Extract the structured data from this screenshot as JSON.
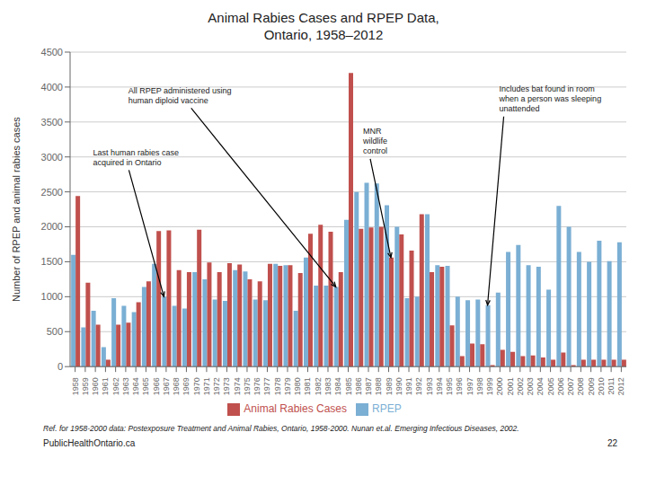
{
  "chart_data": {
    "type": "bar",
    "title": "Animal Rabies Cases and RPEP Data,\nOntario, 1958–2012",
    "y_label": "Number of RPEP and animal rabies cases",
    "categories": [
      "1958",
      "1959",
      "1960",
      "1961",
      "1962",
      "1963",
      "1964",
      "1965",
      "1966",
      "1967",
      "1968",
      "1969",
      "1970",
      "1971",
      "1972",
      "1973",
      "1974",
      "1975",
      "1976",
      "1977",
      "1978",
      "1979",
      "1980",
      "1981",
      "1982",
      "1983",
      "1984",
      "1985",
      "1986",
      "1987",
      "1988",
      "1989",
      "1990",
      "1991",
      "1992",
      "1993",
      "1994",
      "1995",
      "1996",
      "1997",
      "1998",
      "1999",
      "2000",
      "2001",
      "2002",
      "2003",
      "2004",
      "2005",
      "2006",
      "2007",
      "2008",
      "2009",
      "2010",
      "2011",
      "2012"
    ],
    "series": [
      {
        "name": "RPEP",
        "color": "#7BAFD4",
        "values": [
          1600,
          560,
          800,
          280,
          980,
          870,
          780,
          1140,
          1470,
          1000,
          870,
          830,
          1350,
          1250,
          960,
          940,
          1380,
          1360,
          960,
          950,
          1470,
          1450,
          800,
          1560,
          1160,
          1160,
          1140,
          2100,
          2500,
          2630,
          2620,
          2310,
          2000,
          980,
          1000,
          2180,
          1450,
          1440,
          1000,
          950,
          960,
          880,
          1060,
          1640,
          1740,
          1450,
          1430,
          1100,
          2300,
          2000,
          1640,
          1500,
          1800,
          1510,
          1780
        ]
      },
      {
        "name": "Animal Rabies Cases",
        "color": "#C0504D",
        "values": [
          2440,
          1200,
          600,
          100,
          600,
          630,
          920,
          1220,
          1940,
          1950,
          1380,
          1350,
          1960,
          1490,
          1350,
          1480,
          1460,
          1250,
          1220,
          1470,
          1440,
          1450,
          1340,
          1900,
          2030,
          1930,
          1350,
          4200,
          1970,
          1990,
          2000,
          1560,
          1890,
          1660,
          2180,
          1350,
          1430,
          590,
          150,
          330,
          320,
          20,
          240,
          210,
          150,
          160,
          130,
          100,
          200,
          20,
          100,
          100,
          100,
          100,
          100
        ]
      }
    ],
    "ylim": [
      0,
      4500
    ],
    "yticks": [
      0,
      500,
      1000,
      1500,
      2000,
      2500,
      3000,
      3500,
      4000,
      4500
    ],
    "grid": true,
    "legend": "bottom",
    "annotations": [
      {
        "text": "All RPEP administered using\nhuman diploid vaccine",
        "x": "1984",
        "series": "RPEP"
      },
      {
        "text": "Last human rabies case\nacquired in Ontario",
        "x": "1967",
        "series": "RPEP"
      },
      {
        "text": "MNR\nwildlife\ncontrol",
        "x": "1989",
        "series": "Animal Rabies Cases"
      },
      {
        "text": "Includes bat found in room\nwhen a person was sleeping\nunattended",
        "x": "1999",
        "series": "RPEP"
      },
      {
        "text": "Ref. for 1958-2000 data: Postexposure Treatment and Animal Rabies, Ontario, 1958-2000. Nunan et.al. Emerging Infectious Diseases, 2002."
      },
      {
        "text": "PublicHealthOntario.ca"
      },
      {
        "text": "22"
      }
    ]
  }
}
